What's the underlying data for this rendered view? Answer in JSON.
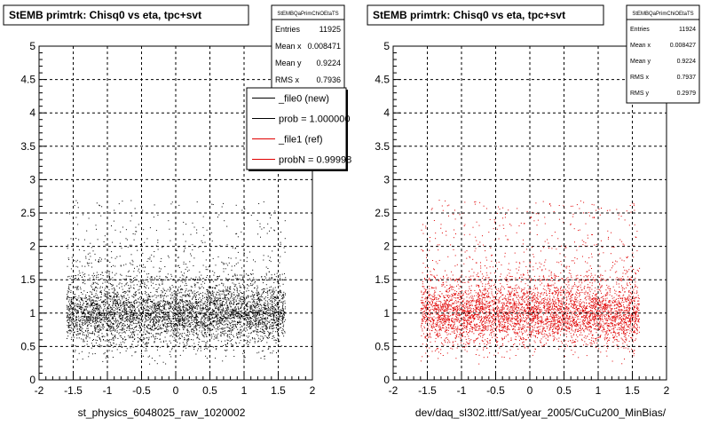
{
  "colors": {
    "series_new": "#000000",
    "series_ref": "#e00000",
    "frame": "#000000",
    "grid": "#000000"
  },
  "chart_data": [
    {
      "type": "scatter",
      "title": "StEMB primtrk: Chisq0 vs eta, tpc+svt",
      "xlabel": "st_physics_6048025_raw_1020002",
      "ylabel": "",
      "xlim": [
        -2,
        2
      ],
      "ylim": [
        0,
        5
      ],
      "xticks": [
        "-2",
        "-1.5",
        "-1",
        "-0.5",
        "0",
        "0.5",
        "1",
        "1.5",
        "2"
      ],
      "yticks": [
        "0",
        "0.5",
        "1",
        "1.5",
        "2",
        "2.5",
        "3",
        "3.5",
        "4",
        "4.5",
        "5"
      ],
      "grid": true,
      "series": [
        {
          "name": "_file0 (new)",
          "color": "#000000",
          "entries": 11925,
          "mean_x": 0.008471,
          "mean_y": 0.9224,
          "rms_x": 0.7936,
          "density": {
            "x_range": [
              -1.6,
              1.6
            ],
            "y_core": [
              0.4,
              1.5
            ],
            "y_peak": 1.0
          }
        }
      ],
      "stats_box": {
        "name": "StEMBQaPrimChiOEtaTS",
        "rows": [
          {
            "label": "Entries",
            "value": "11925"
          },
          {
            "label": "Mean x",
            "value": "0.008471"
          },
          {
            "label": "Mean y",
            "value": "0.9224"
          },
          {
            "label": "RMS x",
            "value": "0.7936"
          }
        ]
      },
      "legend": {
        "placement": "top-right",
        "entries": [
          {
            "label": "_file0 (new)",
            "color": "#000000"
          },
          {
            "label": "prob = 1.000000",
            "color": "#000000"
          },
          {
            "label": "_file1 (ref)",
            "color": "#e00000"
          },
          {
            "label": "probN = 0.99998",
            "color": "#e00000"
          }
        ]
      }
    },
    {
      "type": "scatter",
      "title": "StEMB primtrk: Chisq0 vs eta, tpc+svt",
      "xlabel": "dev/daq_sl302.ittf/Sat/year_2005/CuCu200_MinBias/",
      "ylabel": "",
      "xlim": [
        -2,
        2
      ],
      "ylim": [
        0,
        5
      ],
      "xticks": [
        "-2",
        "-1.5",
        "-1",
        "-0.5",
        "0",
        "0.5",
        "1",
        "1.5",
        "2"
      ],
      "yticks": [
        "0",
        "0.5",
        "1",
        "1.5",
        "2",
        "2.5",
        "3",
        "3.5",
        "4",
        "4.5",
        "5"
      ],
      "grid": true,
      "series": [
        {
          "name": "_file1 (ref)",
          "color": "#e00000",
          "entries": 11924,
          "mean_x": 0.008427,
          "mean_y": 0.9224,
          "rms_x": 0.7937,
          "rms_y": 0.2979,
          "density": {
            "x_range": [
              -1.6,
              1.6
            ],
            "y_core": [
              0.4,
              1.5
            ],
            "y_peak": 1.0
          }
        }
      ],
      "stats_box": {
        "name": "StEMBQaPrimChiOEtaTS",
        "rows": [
          {
            "label": "Entries",
            "value": "11924"
          },
          {
            "label": "Mean x",
            "value": "0.008427"
          },
          {
            "label": "Mean y",
            "value": "0.9224"
          },
          {
            "label": "RMS x",
            "value": "0.7937"
          },
          {
            "label": "RMS y",
            "value": "0.2979"
          }
        ]
      }
    }
  ]
}
